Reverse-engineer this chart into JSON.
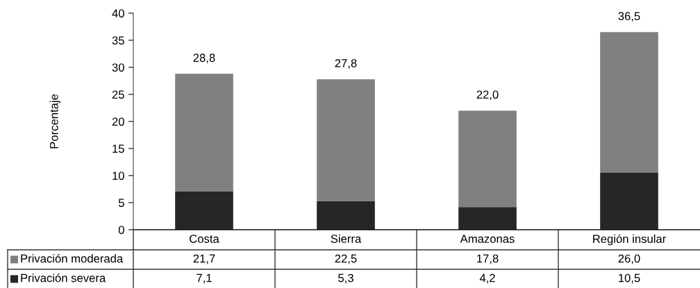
{
  "chart_data": {
    "type": "bar",
    "stacked": true,
    "ylabel": "Porcentaje",
    "categories": [
      "Costa",
      "Sierra",
      "Amazonas",
      "Región insular"
    ],
    "series": [
      {
        "name": "Privación severa",
        "color": "#262626",
        "values": [
          7.1,
          5.3,
          4.2,
          10.5
        ],
        "value_labels": [
          "7,1",
          "5,3",
          "4,2",
          "10,5"
        ]
      },
      {
        "name": "Privación moderada",
        "color": "#808080",
        "values": [
          21.7,
          22.5,
          17.8,
          26.0
        ],
        "value_labels": [
          "21,7",
          "22,5",
          "17,8",
          "26,0"
        ]
      }
    ],
    "totals": [
      "28,8",
      "27,8",
      "22,0",
      "36,5"
    ],
    "ylim": [
      0,
      40
    ],
    "yticks": [
      0,
      5,
      10,
      15,
      20,
      25,
      30,
      35,
      40
    ],
    "legend": "bottom"
  }
}
